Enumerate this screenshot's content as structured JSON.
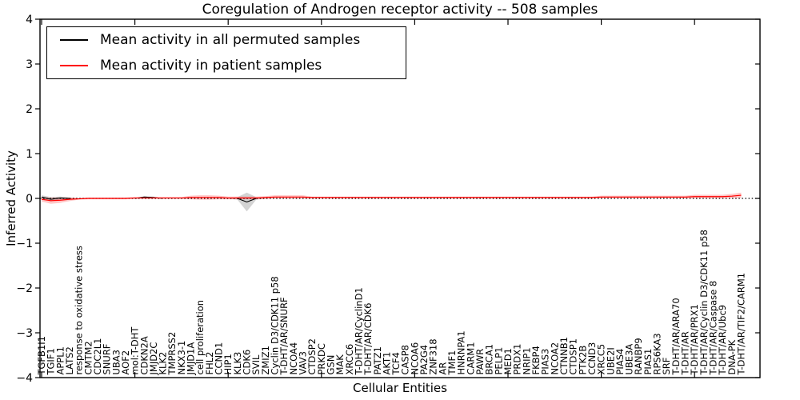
{
  "chart_data": {
    "type": "line",
    "title": "Coregulation of Androgen receptor activity -- 508 samples",
    "xlabel": "Cellular Entities",
    "ylabel": "Inferred Activity",
    "ylim": [
      -4,
      4
    ],
    "grid": false,
    "legend_position": "upper left",
    "zero_line": {
      "style": "dotted",
      "color": "#000000",
      "y": 0
    },
    "y_ticks": [
      {
        "value": 4,
        "label": "4"
      },
      {
        "value": 3,
        "label": "3"
      },
      {
        "value": 2,
        "label": "2"
      },
      {
        "value": 1,
        "label": "1"
      },
      {
        "value": 0,
        "label": "0"
      },
      {
        "value": -1,
        "label": "−1"
      },
      {
        "value": -2,
        "label": "−2"
      },
      {
        "value": -3,
        "label": "−3"
      },
      {
        "value": -4,
        "label": "−4"
      }
    ],
    "x_major_tick_interval": 10,
    "categories": [
      "TGFB1I1",
      "TGIF1",
      "APPL1",
      "LATS2",
      "response to oxidative stress",
      "CMTM2",
      "CDC2L1",
      "SNURF",
      "UBA3",
      "AOF2",
      "mol:T-DHT",
      "CDKN2A",
      "JMJD2C",
      "KLK2",
      "TMPRSS2",
      "NKX3-1",
      "JMJD1A",
      "cell proliferation",
      "FHL2",
      "CCND1",
      "HIP1",
      "KLK3",
      "CDK6",
      "SVIL",
      "ZMIZ1",
      "Cyclin D3/CDK11 p58",
      "T-DHT/AR/SNURF",
      "NCOA4",
      "VAV3",
      "CTDSP2",
      "PRKDC",
      "GSN",
      "MAK",
      "XRCC6",
      "T-DHT/AR/CyclinD1",
      "T-DHT/AR/CDK6",
      "PATZ1",
      "AKT1",
      "TCF4",
      "CASP8",
      "NCOA6",
      "PA2G4",
      "ZNF318",
      "AR",
      "TMF1",
      "HNRNPA1",
      "CARM1",
      "PAWR",
      "BRCA1",
      "PELP1",
      "MED1",
      "PRDX1",
      "NRIP1",
      "FKBP4",
      "PIAS3",
      "NCOA2",
      "CTNNB1",
      "CTDSP1",
      "PTK2B",
      "CCND3",
      "XRCC5",
      "UBE2I",
      "PIAS4",
      "UBE3A",
      "RANBP9",
      "PIAS1",
      "RPS6KA3",
      "SRF",
      "T-DHT/AR/ARA70",
      "T-DHT/AR",
      "T-DHT/AR/PRX1",
      "T-DHT/AR/Cyclin D3/CDK11 p58",
      "T-DHT/AR/Caspase 8",
      "T-DHT/AR/Ubc9",
      "DNA-PK",
      "T-DHT/AR/TIF2/CARM1"
    ],
    "series": [
      {
        "name": "Mean activity in all permuted samples",
        "color": "#000000",
        "band_color": "#909090",
        "values": [
          0.03,
          -0.02,
          0.01,
          0,
          0,
          0,
          0,
          0,
          0,
          0,
          0,
          0.03,
          0.02,
          0,
          0,
          0,
          0,
          0,
          0,
          0,
          0,
          0,
          -0.08,
          0,
          0,
          0,
          0,
          0,
          0,
          0,
          0,
          0,
          0,
          0,
          0,
          0,
          0,
          0,
          0,
          0,
          0,
          0,
          0,
          0,
          0,
          0,
          0,
          0,
          0,
          0,
          0,
          0,
          0,
          0,
          0,
          0,
          0,
          0,
          0,
          0,
          0,
          0,
          0,
          0,
          0,
          0,
          0,
          0,
          0,
          0,
          0,
          0,
          0,
          0,
          0,
          0
        ],
        "band": [
          0.04,
          0.05,
          0.03,
          0.02,
          0,
          0,
          0,
          0,
          0,
          0,
          0,
          0.02,
          0.02,
          0,
          0,
          0,
          0,
          0,
          0,
          0,
          0,
          0.03,
          0.21,
          0.03,
          0,
          0,
          0,
          0,
          0,
          0,
          0,
          0,
          0,
          0,
          0,
          0,
          0,
          0,
          0,
          0,
          0,
          0,
          0,
          0,
          0,
          0,
          0,
          0,
          0,
          0,
          0,
          0,
          0,
          0,
          0,
          0,
          0,
          0,
          0,
          0,
          0,
          0,
          0,
          0,
          0,
          0,
          0,
          0,
          0,
          0,
          0,
          0,
          0,
          0,
          0,
          0
        ]
      },
      {
        "name": "Mean activity in patient samples",
        "color": "#ff0000",
        "band_color": "#ff0000",
        "values": [
          -0.02,
          -0.05,
          -0.04,
          -0.02,
          -0.01,
          0,
          0,
          0,
          0,
          0,
          0.01,
          0.01,
          0.01,
          0.01,
          0.01,
          0.01,
          0.02,
          0.02,
          0.02,
          0.02,
          0.01,
          0.01,
          0.01,
          0.01,
          0.02,
          0.03,
          0.03,
          0.03,
          0.03,
          0.02,
          0.02,
          0.02,
          0.02,
          0.02,
          0.02,
          0.02,
          0.02,
          0.02,
          0.02,
          0.02,
          0.02,
          0.02,
          0.02,
          0.02,
          0.02,
          0.02,
          0.02,
          0.02,
          0.02,
          0.02,
          0.02,
          0.02,
          0.02,
          0.02,
          0.02,
          0.02,
          0.02,
          0.02,
          0.02,
          0.02,
          0.03,
          0.03,
          0.03,
          0.03,
          0.03,
          0.03,
          0.03,
          0.03,
          0.03,
          0.03,
          0.04,
          0.04,
          0.04,
          0.04,
          0.05,
          0.07
        ],
        "band": [
          0.05,
          0.07,
          0.06,
          0.04,
          0.02,
          0.02,
          0.02,
          0.02,
          0.02,
          0.02,
          0.02,
          0.02,
          0.02,
          0.02,
          0.02,
          0.02,
          0.04,
          0.05,
          0.05,
          0.04,
          0.03,
          0.03,
          0.03,
          0.03,
          0.03,
          0.04,
          0.04,
          0.04,
          0.04,
          0.02,
          0.02,
          0.02,
          0.02,
          0.02,
          0.02,
          0.02,
          0.02,
          0.02,
          0.02,
          0.02,
          0.02,
          0.02,
          0.02,
          0.02,
          0.02,
          0.02,
          0.02,
          0.02,
          0.02,
          0.02,
          0.02,
          0.02,
          0.02,
          0.02,
          0.02,
          0.02,
          0.02,
          0.02,
          0.02,
          0.02,
          0.03,
          0.03,
          0.03,
          0.03,
          0.03,
          0.03,
          0.03,
          0.03,
          0.03,
          0.03,
          0.04,
          0.04,
          0.04,
          0.04,
          0.05,
          0.06
        ]
      }
    ]
  }
}
